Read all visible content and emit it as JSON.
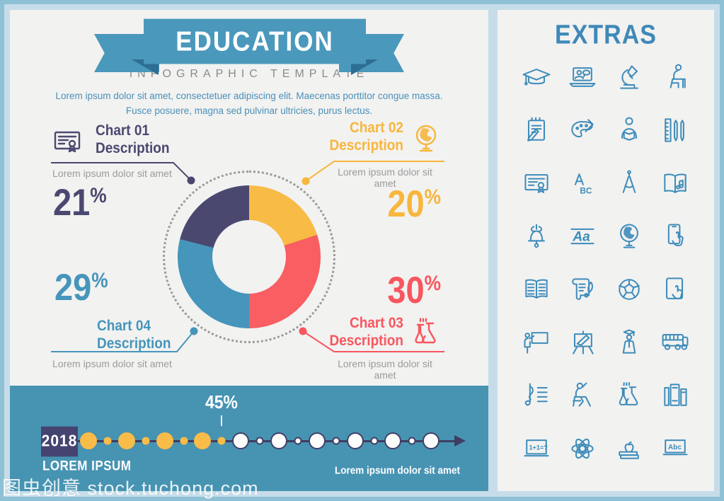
{
  "header": {
    "title": "EDUCATION",
    "subtitle": "INFOGRAPHIC TEMPLATE",
    "description": "Lorem ipsum dolor sit amet, consectetuer adipiscing elit. Maecenas porttitor congue massa. Fusce posuere, magna sed pulvinar ultricies, purus lectus."
  },
  "chart_data": {
    "type": "pie",
    "subtype": "donut",
    "title": "EDUCATION",
    "segments": [
      {
        "label": "Chart 02 Description",
        "value": 20,
        "color": "#f8bb46"
      },
      {
        "label": "Chart 03 Description",
        "value": 30,
        "color": "#f85e62"
      },
      {
        "label": "Chart 04 Description",
        "value": 29,
        "color": "#4695bb"
      },
      {
        "label": "Chart 01 Description",
        "value": 21,
        "color": "#4b4870"
      }
    ],
    "start_angle_deg": 0,
    "direction": "clockwise",
    "legend_position": "callouts"
  },
  "charts": [
    {
      "title_line1": "Chart 01",
      "title_line2": "Description",
      "caption": "Lorem ipsum dolor sit amet",
      "value": "21",
      "suffix": "%",
      "color": "#4b4870",
      "icon": "certificate-icon"
    },
    {
      "title_line1": "Chart 02",
      "title_line2": "Description",
      "caption": "Lorem ipsum dolor sit amet",
      "value": "20",
      "suffix": "%",
      "color": "#f7b63c",
      "icon": "globe-icon"
    },
    {
      "title_line1": "Chart 03",
      "title_line2": "Description",
      "caption": "Lorem ipsum dolor sit amet",
      "value": "30",
      "suffix": "%",
      "color": "#f8565f",
      "icon": "chemistry-flasks-icon"
    },
    {
      "title_line1": "Chart 04",
      "title_line2": "Description",
      "caption": "Lorem ipsum dolor sit amet",
      "value": "29",
      "suffix": "%",
      "color": "#4695bb",
      "icon": null
    }
  ],
  "timeline": {
    "year": "2018",
    "marker_label": "45%",
    "label_left": "LOREM IPSUM",
    "label_right": "Lorem ipsum dolor sit amet",
    "dots": [
      {
        "size": "big",
        "color": "yellow"
      },
      {
        "size": "small",
        "color": "yellow"
      },
      {
        "size": "big",
        "color": "yellow"
      },
      {
        "size": "small",
        "color": "yellow"
      },
      {
        "size": "big",
        "color": "yellow"
      },
      {
        "size": "small",
        "color": "yellow"
      },
      {
        "size": "big",
        "color": "yellow"
      },
      {
        "size": "small",
        "color": "yellow"
      },
      {
        "size": "big",
        "color": "white"
      },
      {
        "size": "small",
        "color": "white"
      },
      {
        "size": "big",
        "color": "white"
      },
      {
        "size": "small",
        "color": "white"
      },
      {
        "size": "big",
        "color": "white"
      },
      {
        "size": "small",
        "color": "white"
      },
      {
        "size": "big",
        "color": "white"
      },
      {
        "size": "small",
        "color": "white"
      },
      {
        "size": "big",
        "color": "white"
      },
      {
        "size": "small",
        "color": "white"
      },
      {
        "size": "big",
        "color": "white"
      }
    ]
  },
  "extras": {
    "title": "EXTRAS",
    "icon_color": "#3e8cba",
    "icons": [
      "graduation-cap-icon",
      "online-class-icon",
      "microscope-icon",
      "student-desk-icon",
      "notepad-icon",
      "paint-palette-icon",
      "reading-person-icon",
      "ruler-pens-icon",
      "certificate-icon",
      "abc-letters-icon",
      "drawing-compass-icon",
      "music-book-icon",
      "school-bell-icon",
      "handwriting-icon",
      "globe-icon",
      "smartphone-touch-icon",
      "open-book-icon",
      "scroll-quill-icon",
      "soccer-ball-icon",
      "tablet-touch-icon",
      "teacher-blackboard-icon",
      "easel-icon",
      "graduate-icon",
      "school-bus-icon",
      "sheet-music-icon",
      "student-raising-hand-icon",
      "chemistry-flasks-icon",
      "bookshelf-icon",
      "math-board-icon",
      "atom-icon",
      "apple-books-icon",
      "abc-board-icon"
    ]
  },
  "watermark": {
    "text": "图虫创意 stock.tuchong.com"
  },
  "palette": {
    "ribbon_blue": "#4a98bc",
    "ribbon_fold": "#2d6e92",
    "bottom_bar": "#4793b2",
    "timeline_navy": "#3f3d63",
    "year_box": "#454370",
    "panel_bg": "#f2f2f1",
    "caption_gray": "#9b9b9b",
    "frame_outer": "#8fc1d6",
    "frame_inner": "#c6dde9"
  }
}
